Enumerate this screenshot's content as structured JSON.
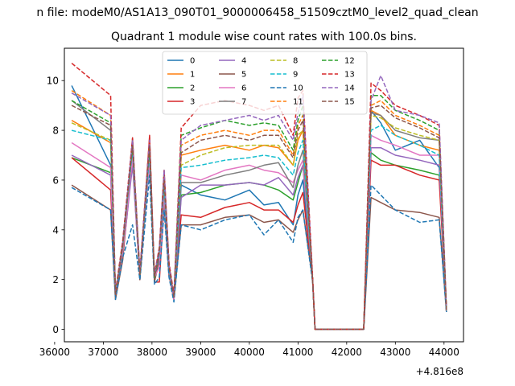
{
  "chart_data": {
    "type": "line",
    "suptitle": "n file: modeM0/AS1A13_090T01_9000006458_51509cztM0_level2_quad_clean",
    "title": "Quadrant 1 module wise count rates with 100.0s bins.",
    "xlabel": "",
    "ylabel": "",
    "x_offset_label": "+4.816e8",
    "xlim": [
      36200,
      44400
    ],
    "ylim": [
      -0.5,
      11.3
    ],
    "x_ticks": [
      36000,
      37000,
      38000,
      39000,
      40000,
      41000,
      42000,
      43000,
      44000
    ],
    "x_tick_labels": [
      "36000",
      "37000",
      "38000",
      "39000",
      "40000",
      "41000",
      "42000",
      "43000",
      "44000"
    ],
    "y_ticks": [
      0,
      2,
      4,
      6,
      8,
      10
    ],
    "y_tick_labels": [
      "0",
      "2",
      "4",
      "6",
      "8",
      "10"
    ],
    "legend_position": "upper-center",
    "x": [
      36350,
      37150,
      37250,
      37400,
      37600,
      37750,
      37950,
      38050,
      38150,
      38250,
      38350,
      38450,
      38600,
      39000,
      39500,
      40000,
      40300,
      40600,
      40900,
      41000,
      41100,
      41300,
      41350,
      42350,
      42500,
      42700,
      43000,
      43500,
      43900,
      44050
    ],
    "series": [
      {
        "name": "0",
        "color": "#1f77b4",
        "dash": "solid",
        "values": [
          9.8,
          6.6,
          1.3,
          3.2,
          7.5,
          2.0,
          7.6,
          1.9,
          3.0,
          6.0,
          2.4,
          1.2,
          5.8,
          5.4,
          5.2,
          5.6,
          5.0,
          5.1,
          4.2,
          5.4,
          6.0,
          2.0,
          0.0,
          0.0,
          8.8,
          8.3,
          7.2,
          7.6,
          6.5,
          0.7
        ]
      },
      {
        "name": "1",
        "color": "#ff7f0e",
        "dash": "solid",
        "values": [
          8.4,
          7.5,
          1.4,
          3.4,
          7.4,
          2.2,
          7.3,
          2.0,
          3.1,
          6.2,
          2.6,
          1.3,
          7.0,
          7.2,
          7.4,
          7.2,
          7.4,
          7.3,
          6.6,
          7.6,
          8.0,
          2.0,
          0.0,
          0.0,
          8.8,
          8.6,
          7.8,
          7.4,
          7.2,
          0.8
        ]
      },
      {
        "name": "2",
        "color": "#2ca02c",
        "dash": "solid",
        "values": [
          6.9,
          6.3,
          1.4,
          3.1,
          7.0,
          2.1,
          7.0,
          2.0,
          2.9,
          5.6,
          2.3,
          1.2,
          5.4,
          5.5,
          5.8,
          5.9,
          5.8,
          5.6,
          5.2,
          5.9,
          6.6,
          2.0,
          0.0,
          0.0,
          7.1,
          6.8,
          6.6,
          6.4,
          6.2,
          0.7
        ]
      },
      {
        "name": "3",
        "color": "#d62728",
        "dash": "solid",
        "values": [
          6.9,
          5.6,
          1.3,
          2.9,
          6.8,
          2.0,
          7.8,
          1.9,
          1.9,
          5.2,
          2.2,
          1.2,
          4.6,
          4.5,
          4.9,
          5.1,
          4.8,
          4.8,
          4.3,
          5.0,
          5.5,
          2.0,
          0.0,
          0.0,
          6.8,
          6.6,
          6.6,
          6.2,
          6.0,
          0.7
        ]
      },
      {
        "name": "4",
        "color": "#9467bd",
        "dash": "solid",
        "values": [
          7.0,
          6.2,
          1.3,
          3.0,
          6.6,
          2.1,
          6.7,
          2.0,
          2.9,
          5.4,
          2.3,
          1.2,
          5.3,
          5.8,
          5.8,
          5.9,
          5.8,
          6.1,
          5.4,
          6.1,
          6.6,
          2.0,
          0.0,
          0.0,
          7.3,
          7.3,
          7.0,
          6.8,
          6.6,
          0.7
        ]
      },
      {
        "name": "5",
        "color": "#8c564b",
        "dash": "solid",
        "values": [
          5.8,
          4.8,
          1.2,
          2.8,
          7.7,
          2.0,
          7.3,
          1.9,
          2.8,
          5.0,
          2.2,
          1.2,
          4.2,
          4.2,
          4.5,
          4.6,
          4.3,
          4.4,
          3.9,
          4.4,
          4.8,
          2.0,
          0.0,
          0.0,
          5.3,
          5.1,
          4.8,
          4.7,
          4.5,
          0.7
        ]
      },
      {
        "name": "6",
        "color": "#e377c2",
        "dash": "solid",
        "values": [
          7.5,
          6.5,
          1.4,
          3.1,
          6.9,
          2.1,
          6.8,
          2.1,
          2.5,
          5.4,
          2.3,
          1.2,
          6.2,
          6.0,
          6.4,
          6.6,
          6.4,
          6.3,
          5.9,
          6.4,
          6.8,
          2.0,
          0.0,
          0.0,
          7.8,
          7.6,
          7.4,
          7.0,
          7.0,
          0.7
        ]
      },
      {
        "name": "7",
        "color": "#7f7f7f",
        "dash": "solid",
        "values": [
          9.2,
          8.0,
          1.4,
          3.3,
          7.4,
          2.2,
          7.4,
          2.1,
          3.1,
          5.8,
          2.4,
          1.3,
          5.9,
          5.9,
          6.2,
          6.4,
          6.6,
          6.7,
          5.7,
          6.6,
          7.2,
          2.0,
          0.0,
          0.0,
          8.7,
          8.6,
          8.0,
          7.7,
          7.6,
          0.7
        ]
      },
      {
        "name": "8",
        "color": "#bcbd22",
        "dash": "dashed",
        "values": [
          8.3,
          7.6,
          1.4,
          3.4,
          7.3,
          2.2,
          7.3,
          2.1,
          3.1,
          6.0,
          2.5,
          1.3,
          6.6,
          7.0,
          7.3,
          7.4,
          7.4,
          7.4,
          6.6,
          7.8,
          8.0,
          2.0,
          0.0,
          0.0,
          8.6,
          8.5,
          8.1,
          7.8,
          7.6,
          0.8
        ]
      },
      {
        "name": "9",
        "color": "#17becf",
        "dash": "dashed",
        "values": [
          8.0,
          7.6,
          1.4,
          3.4,
          7.2,
          2.2,
          7.1,
          2.1,
          3.0,
          5.8,
          2.4,
          1.3,
          6.5,
          6.6,
          6.8,
          6.9,
          7.0,
          6.9,
          6.2,
          7.1,
          7.6,
          2.0,
          0.0,
          0.0,
          8.0,
          8.2,
          7.8,
          7.4,
          7.0,
          0.8
        ]
      },
      {
        "name": "10",
        "color": "#1f77b4",
        "dash": "dashed",
        "values": [
          5.7,
          4.8,
          1.2,
          2.9,
          4.2,
          2.0,
          6.2,
          1.8,
          2.1,
          4.8,
          2.1,
          1.1,
          4.2,
          4.0,
          4.4,
          4.6,
          3.8,
          4.4,
          3.5,
          4.5,
          4.8,
          1.9,
          0.0,
          0.0,
          5.8,
          5.4,
          4.8,
          4.3,
          4.4,
          0.7
        ]
      },
      {
        "name": "11",
        "color": "#ff7f0e",
        "dash": "dashed",
        "values": [
          9.6,
          8.6,
          1.4,
          3.5,
          7.5,
          2.3,
          7.5,
          2.1,
          3.2,
          6.4,
          2.6,
          1.3,
          7.4,
          7.8,
          8.0,
          7.8,
          8.0,
          8.0,
          7.0,
          8.2,
          8.6,
          2.0,
          0.0,
          0.0,
          9.0,
          9.2,
          8.6,
          8.2,
          7.8,
          0.8
        ]
      },
      {
        "name": "12",
        "color": "#2ca02c",
        "dash": "dashed",
        "values": [
          9.2,
          8.3,
          1.4,
          3.5,
          7.4,
          2.2,
          7.4,
          2.1,
          3.2,
          6.2,
          2.6,
          1.3,
          7.8,
          8.1,
          8.4,
          8.2,
          8.3,
          8.2,
          7.2,
          8.4,
          9.0,
          2.0,
          0.0,
          0.0,
          9.4,
          9.4,
          8.8,
          8.4,
          8.0,
          0.8
        ]
      },
      {
        "name": "13",
        "color": "#d62728",
        "dash": "dashed",
        "values": [
          10.7,
          9.4,
          1.5,
          3.6,
          7.7,
          2.3,
          7.7,
          2.2,
          3.3,
          6.4,
          2.7,
          1.4,
          8.1,
          9.0,
          9.2,
          9.0,
          8.8,
          9.0,
          7.8,
          9.3,
          9.6,
          2.1,
          0.0,
          0.0,
          9.9,
          9.6,
          9.0,
          8.6,
          8.2,
          0.9
        ]
      },
      {
        "name": "14",
        "color": "#9467bd",
        "dash": "dashed",
        "values": [
          9.5,
          8.6,
          1.4,
          3.5,
          7.6,
          2.3,
          7.6,
          2.2,
          3.2,
          6.4,
          2.6,
          1.3,
          7.6,
          8.2,
          8.4,
          8.6,
          8.4,
          8.6,
          7.6,
          8.7,
          9.4,
          2.0,
          0.0,
          0.0,
          9.2,
          10.2,
          8.8,
          8.6,
          8.3,
          0.8
        ]
      },
      {
        "name": "15",
        "color": "#8c564b",
        "dash": "dashed",
        "values": [
          9.0,
          8.2,
          1.4,
          3.4,
          7.4,
          2.2,
          7.4,
          2.1,
          3.1,
          6.0,
          2.5,
          1.3,
          7.1,
          7.6,
          7.8,
          7.6,
          7.8,
          7.8,
          6.9,
          8.0,
          8.4,
          2.0,
          0.0,
          0.0,
          8.9,
          9.0,
          8.5,
          8.1,
          7.7,
          0.8
        ]
      }
    ]
  }
}
